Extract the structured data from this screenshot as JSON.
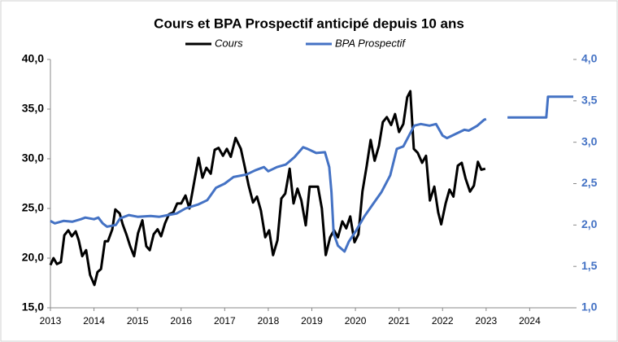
{
  "chart_data": {
    "type": "line",
    "title": "Cours et BPA Prospectif anticipé depuis 10 ans",
    "xlim": [
      2013,
      2025
    ],
    "xticks": [
      2013,
      2014,
      2015,
      2016,
      2017,
      2018,
      2019,
      2020,
      2021,
      2022,
      2023,
      2024
    ],
    "ylim": [
      15,
      40
    ],
    "yticks": [
      {
        "value": 15,
        "label": "15,0"
      },
      {
        "value": 20,
        "label": "20,0"
      },
      {
        "value": 25,
        "label": "25,0"
      },
      {
        "value": 30,
        "label": "30,0"
      },
      {
        "value": 35,
        "label": "35,0"
      },
      {
        "value": 40,
        "label": "40,0"
      }
    ],
    "y2lim": [
      1,
      4
    ],
    "y2ticks": [
      {
        "value": 1,
        "label": "1,0"
      },
      {
        "value": 1.5,
        "label": "1,5"
      },
      {
        "value": 2,
        "label": "2,0"
      },
      {
        "value": 2.5,
        "label": "2,5"
      },
      {
        "value": 3,
        "label": "3,0"
      },
      {
        "value": 3.5,
        "label": "3,5"
      },
      {
        "value": 4,
        "label": "4,0"
      }
    ],
    "grid": false,
    "legend": "top",
    "series": [
      {
        "name": "Cours",
        "color": "#000000",
        "x": [
          2013.0,
          2013.07,
          2013.15,
          2013.24,
          2013.32,
          2013.41,
          2013.49,
          2013.58,
          2013.65,
          2013.73,
          2013.82,
          2013.91,
          2014.01,
          2014.08,
          2014.16,
          2014.25,
          2014.32,
          2014.42,
          2014.49,
          2014.59,
          2014.66,
          2014.75,
          2014.83,
          2014.92,
          2015.01,
          2015.11,
          2015.2,
          2015.28,
          2015.37,
          2015.46,
          2015.54,
          2015.63,
          2015.72,
          2015.82,
          2015.91,
          2016.0,
          2016.1,
          2016.19,
          2016.28,
          2016.4,
          2016.49,
          2016.58,
          2016.68,
          2016.77,
          2016.86,
          2016.96,
          2017.05,
          2017.14,
          2017.25,
          2017.37,
          2017.46,
          2017.55,
          2017.65,
          2017.74,
          2017.83,
          2017.93,
          2018.02,
          2018.11,
          2018.21,
          2018.3,
          2018.39,
          2018.49,
          2018.58,
          2018.67,
          2018.76,
          2018.86,
          2018.95,
          2019.04,
          2019.14,
          2019.23,
          2019.32,
          2019.42,
          2019.51,
          2019.6,
          2019.7,
          2019.79,
          2019.88,
          2019.98,
          2020.07,
          2020.16,
          2020.26,
          2020.35,
          2020.44,
          2020.54,
          2020.63,
          2020.72,
          2020.82,
          2020.91,
          2021.0,
          2021.1,
          2021.19,
          2021.26,
          2021.34,
          2021.43,
          2021.53,
          2021.62,
          2021.71,
          2021.81,
          2021.9,
          2021.97,
          2022.07,
          2022.16,
          2022.25,
          2022.35,
          2022.44,
          2022.53,
          2022.63,
          2022.72,
          2022.81,
          2022.89,
          2022.98
        ],
        "values": [
          19.3,
          20.0,
          19.4,
          19.6,
          22.3,
          22.8,
          22.2,
          22.7,
          21.8,
          20.2,
          20.8,
          18.3,
          17.3,
          18.6,
          18.9,
          21.7,
          21.7,
          22.9,
          24.9,
          24.5,
          23.4,
          22.3,
          21.2,
          20.2,
          22.5,
          23.8,
          21.2,
          20.8,
          22.4,
          22.9,
          22.2,
          23.5,
          24.4,
          24.6,
          25.5,
          25.5,
          26.3,
          25.0,
          27.2,
          30.1,
          28.1,
          29.1,
          28.5,
          30.9,
          31.1,
          30.3,
          31.0,
          30.2,
          32.1,
          31.0,
          29.2,
          27.3,
          25.6,
          26.2,
          24.8,
          22.1,
          22.8,
          20.3,
          21.8,
          26.0,
          26.5,
          29.0,
          25.5,
          27.0,
          25.8,
          23.3,
          27.2,
          27.2,
          27.2,
          25.0,
          20.3,
          22.1,
          22.8,
          22.1,
          23.7,
          23.0,
          24.2,
          21.6,
          22.4,
          26.7,
          29.3,
          31.9,
          29.8,
          31.3,
          33.7,
          34.2,
          33.4,
          34.5,
          32.7,
          33.5,
          36.2,
          36.8,
          31.0,
          30.6,
          29.6,
          30.3,
          25.8,
          27.2,
          24.6,
          23.4,
          25.5,
          26.9,
          26.2,
          29.3,
          29.6,
          28.0,
          26.7,
          27.3,
          29.7,
          28.9,
          29.0
        ]
      },
      {
        "name": "BPA Prospectif",
        "color": "#4472c4",
        "axis": "y2",
        "x": [
          2013.0,
          2013.1,
          2013.3,
          2013.5,
          2013.7,
          2013.8,
          2014.0,
          2014.1,
          2014.2,
          2014.3,
          2014.5,
          2014.6,
          2014.8,
          2015.0,
          2015.3,
          2015.5,
          2015.7,
          2015.9,
          2016.1,
          2016.4,
          2016.6,
          2016.8,
          2017.0,
          2017.2,
          2017.5,
          2017.7,
          2017.9,
          2018.0,
          2018.2,
          2018.4,
          2018.6,
          2018.8,
          2018.9,
          2019.1,
          2019.3,
          2019.4,
          2019.45,
          2019.5,
          2019.6,
          2019.75,
          2019.85,
          2020.0,
          2020.2,
          2020.4,
          2020.6,
          2020.8,
          2020.95,
          2021.1,
          2021.2,
          2021.35,
          2021.5,
          2021.7,
          2021.85,
          2022.0,
          2022.1,
          2022.3,
          2022.5,
          2022.6,
          2022.8,
          2022.95,
          2023.0,
          2023.2,
          2023.49,
          2024.38,
          2024.42,
          2025.0
        ],
        "values": [
          2.05,
          2.02,
          2.05,
          2.04,
          2.07,
          2.09,
          2.07,
          2.09,
          2.02,
          1.98,
          2.0,
          2.08,
          2.12,
          2.1,
          2.11,
          2.1,
          2.12,
          2.14,
          2.2,
          2.25,
          2.3,
          2.45,
          2.5,
          2.58,
          2.61,
          2.66,
          2.7,
          2.65,
          2.7,
          2.73,
          2.82,
          2.94,
          2.92,
          2.87,
          2.88,
          2.7,
          2.4,
          1.9,
          1.75,
          1.68,
          1.8,
          1.92,
          2.1,
          2.25,
          2.4,
          2.6,
          2.92,
          2.95,
          3.05,
          3.2,
          3.22,
          3.2,
          3.22,
          3.08,
          3.05,
          3.1,
          3.15,
          3.14,
          3.2,
          3.27,
          3.28,
          null,
          3.3,
          3.3,
          3.55,
          3.55
        ]
      }
    ]
  }
}
